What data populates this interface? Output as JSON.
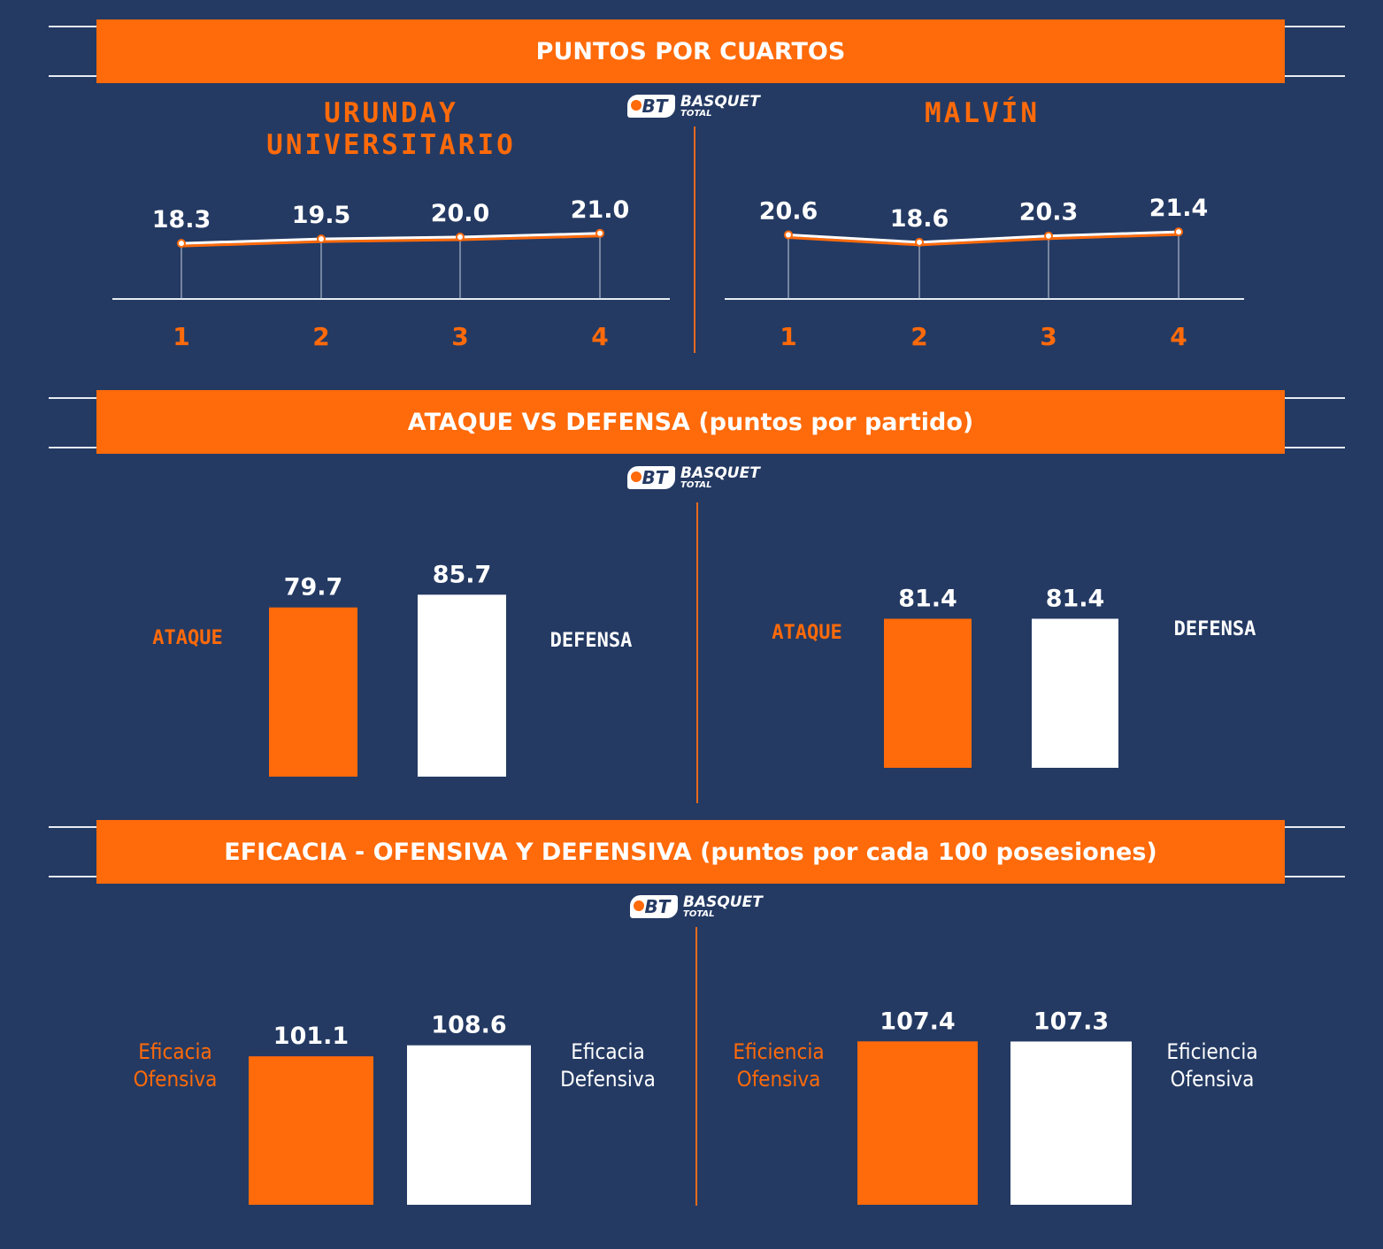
{
  "colors": {
    "background": "#243a63",
    "accent": "#ff6a0a",
    "white": "#ffffff"
  },
  "logo": {
    "badge": "BT",
    "line1": "BASQUET",
    "line2": "TOTAL"
  },
  "sections": {
    "quarters": {
      "title": "PUNTOS POR CUARTOS"
    },
    "attack": {
      "title": "ATAQUE VS DEFENSA (puntos por partido)"
    },
    "efficiency": {
      "title": "EFICACIA - OFENSIVA Y DEFENSIVA (puntos por cada 100 posesiones)"
    }
  },
  "teams": {
    "left": "URUNDAY UNIVERSITARIO",
    "right": "MALVÍN"
  },
  "chart_data": [
    {
      "type": "line",
      "team": "URUNDAY UNIVERSITARIO",
      "categories": [
        "1",
        "2",
        "3",
        "4"
      ],
      "values": [
        18.3,
        19.5,
        20.0,
        21.0
      ],
      "value_labels": [
        "18.3",
        "19.5",
        "20.0",
        "21.0"
      ]
    },
    {
      "type": "line",
      "team": "MALVÍN",
      "categories": [
        "1",
        "2",
        "3",
        "4"
      ],
      "values": [
        20.6,
        18.6,
        20.3,
        21.4
      ],
      "value_labels": [
        "20.6",
        "18.6",
        "20.3",
        "21.4"
      ]
    },
    {
      "type": "bar",
      "team": "URUNDAY UNIVERSITARIO",
      "categories": [
        "ATAQUE",
        "DEFENSA"
      ],
      "values": [
        79.7,
        85.7
      ],
      "value_labels": [
        "79.7",
        "85.7"
      ]
    },
    {
      "type": "bar",
      "team": "MALVÍN",
      "categories": [
        "ATAQUE",
        "DEFENSA"
      ],
      "values": [
        81.4,
        81.4
      ],
      "value_labels": [
        "81.4",
        "81.4"
      ]
    },
    {
      "type": "bar",
      "team": "URUNDAY UNIVERSITARIO",
      "categories": [
        "Eficacia Ofensiva",
        "Eficacia Defensiva"
      ],
      "category_lines": [
        [
          "Eficacia",
          "Ofensiva"
        ],
        [
          "Eficacia",
          "Defensiva"
        ]
      ],
      "values": [
        101.1,
        108.6
      ],
      "value_labels": [
        "101.1",
        "108.6"
      ]
    },
    {
      "type": "bar",
      "team": "MALVÍN",
      "categories": [
        "Eficiencia Ofensiva",
        "Eficiencia Ofensiva"
      ],
      "category_lines": [
        [
          "Eficiencia",
          "Ofensiva"
        ],
        [
          "Eficiencia",
          "Ofensiva"
        ]
      ],
      "values": [
        107.4,
        107.3
      ],
      "value_labels": [
        "107.4",
        "107.3"
      ]
    }
  ]
}
